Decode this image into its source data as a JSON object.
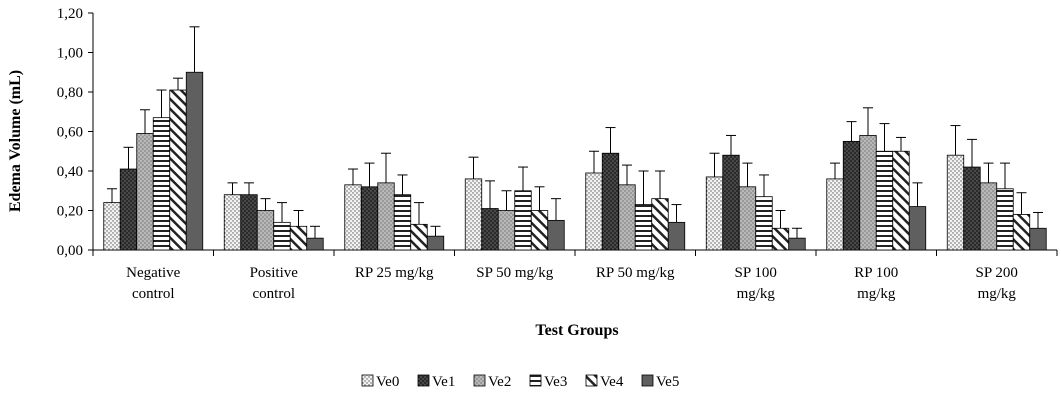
{
  "chart_data": {
    "type": "bar",
    "title": "",
    "xlabel": "Test Groups",
    "ylabel": "Edema  Volume (mL)",
    "ylim": [
      0,
      1.2
    ],
    "yticks": [
      "0,00",
      "0,20",
      "0,40",
      "0,60",
      "0,80",
      "1,00",
      "1,20"
    ],
    "categories": [
      [
        "Negative",
        "control"
      ],
      [
        "Positive",
        "control"
      ],
      [
        "RP 25 mg/kg"
      ],
      [
        "SP 50 mg/kg"
      ],
      [
        "RP 50 mg/kg"
      ],
      [
        "SP 100",
        "mg/kg"
      ],
      [
        "RP 100",
        "mg/kg"
      ],
      [
        "SP 200",
        "mg/kg"
      ]
    ],
    "legend_position": "bottom",
    "grid": false,
    "series": [
      {
        "name": "Ve0",
        "pattern": "dots",
        "values": [
          0.24,
          0.28,
          0.33,
          0.36,
          0.39,
          0.37,
          0.36,
          0.48
        ],
        "errors": [
          0.07,
          0.06,
          0.08,
          0.11,
          0.11,
          0.12,
          0.08,
          0.15
        ]
      },
      {
        "name": "Ve1",
        "pattern": "dark-dots",
        "values": [
          0.41,
          0.28,
          0.32,
          0.21,
          0.49,
          0.48,
          0.55,
          0.42
        ],
        "errors": [
          0.11,
          0.06,
          0.12,
          0.14,
          0.13,
          0.1,
          0.1,
          0.14
        ]
      },
      {
        "name": "Ve2",
        "pattern": "gray",
        "values": [
          0.59,
          0.2,
          0.34,
          0.2,
          0.33,
          0.32,
          0.58,
          0.34
        ],
        "errors": [
          0.12,
          0.06,
          0.15,
          0.1,
          0.1,
          0.12,
          0.14,
          0.1
        ]
      },
      {
        "name": "Ve3",
        "pattern": "hlines",
        "values": [
          0.67,
          0.14,
          0.28,
          0.3,
          0.23,
          0.27,
          0.5,
          0.31
        ],
        "errors": [
          0.14,
          0.1,
          0.1,
          0.12,
          0.17,
          0.11,
          0.14,
          0.13
        ]
      },
      {
        "name": "Ve4",
        "pattern": "diag",
        "values": [
          0.81,
          0.12,
          0.13,
          0.2,
          0.26,
          0.11,
          0.5,
          0.18
        ],
        "errors": [
          0.06,
          0.08,
          0.11,
          0.12,
          0.14,
          0.09,
          0.07,
          0.11
        ]
      },
      {
        "name": "Ve5",
        "pattern": "solid",
        "values": [
          0.9,
          0.06,
          0.07,
          0.15,
          0.14,
          0.06,
          0.22,
          0.11
        ],
        "errors": [
          0.23,
          0.06,
          0.05,
          0.11,
          0.09,
          0.05,
          0.12,
          0.08
        ]
      }
    ]
  }
}
